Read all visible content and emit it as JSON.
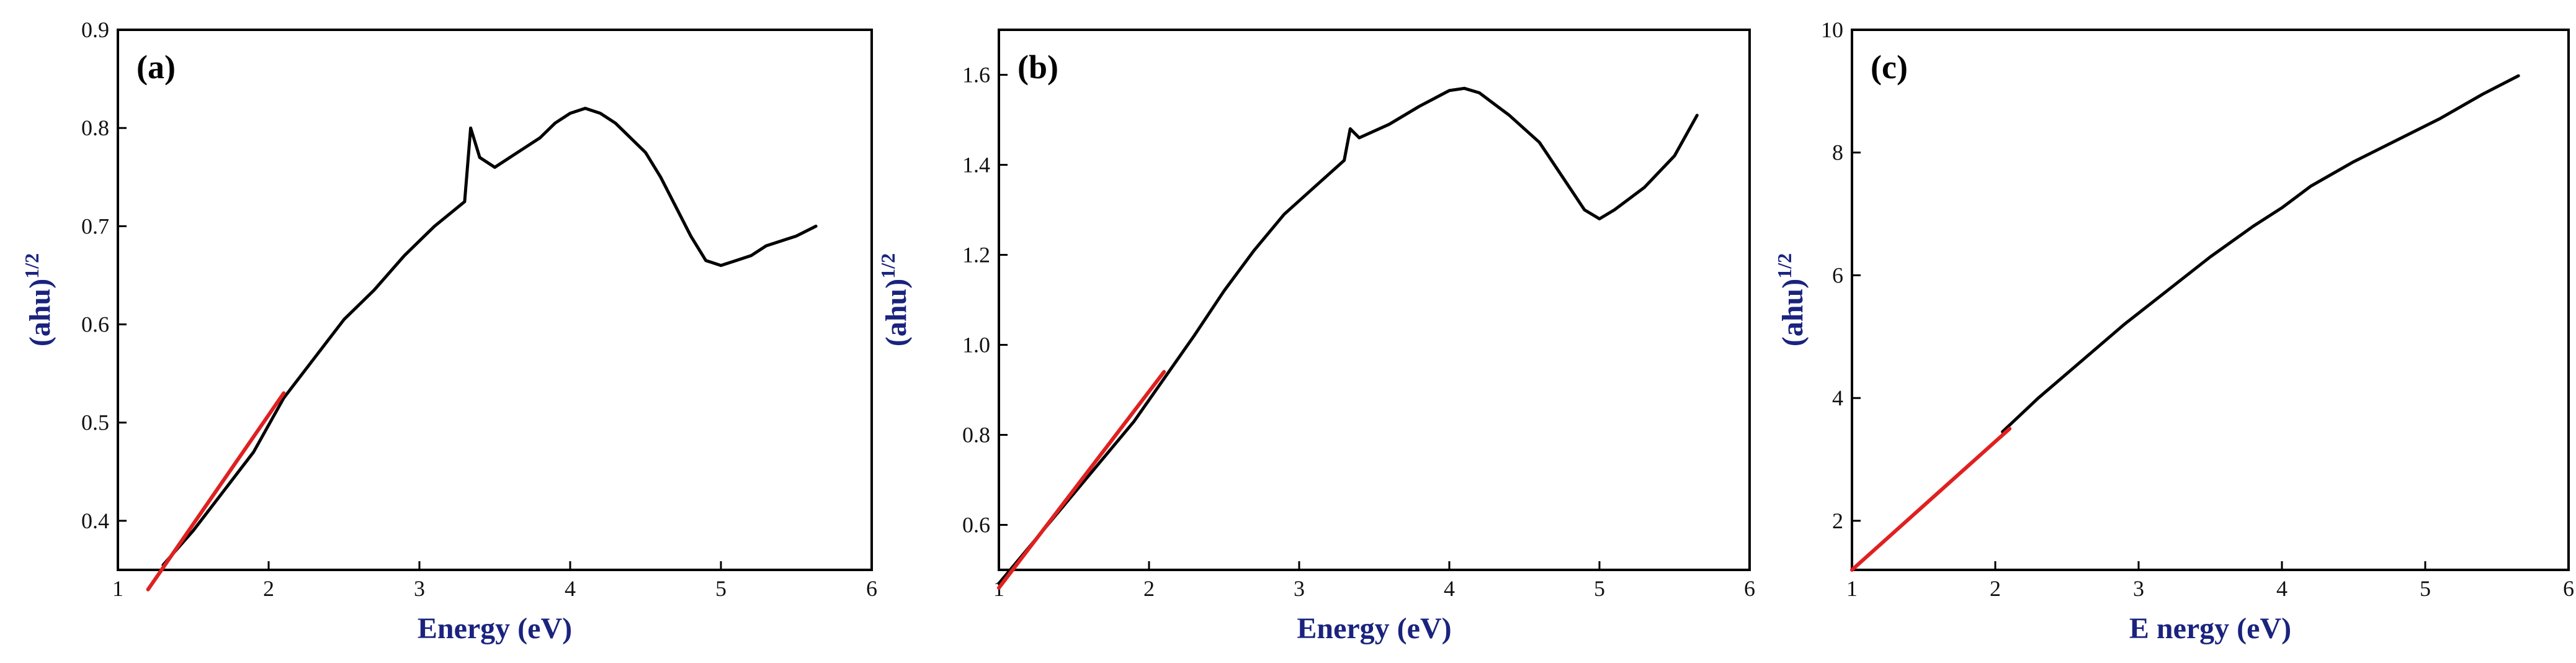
{
  "colors": {
    "curve": "#000000",
    "fit": "#e02020",
    "axis_title": "#1a237e"
  },
  "chart_data": [
    {
      "type": "line",
      "panel_label": "(a)",
      "xlabel": "Energy (eV)",
      "ylabel_base": "(ahu)",
      "ylabel_sup": "1/2",
      "xlim": [
        1,
        6
      ],
      "ylim": [
        0.35,
        0.9
      ],
      "xticks": [
        1,
        2,
        3,
        4,
        5,
        6
      ],
      "yticks": [
        0.4,
        0.5,
        0.6,
        0.7,
        0.8,
        0.9
      ],
      "ytick_labels": [
        "0.4",
        "0.5",
        "0.6",
        "0.7",
        "0.8",
        "0.9"
      ],
      "series": [
        {
          "role": "data",
          "x": [
            1.3,
            1.5,
            1.7,
            1.9,
            2.1,
            2.3,
            2.5,
            2.7,
            2.9,
            3.1,
            3.3,
            3.34,
            3.36,
            3.4,
            3.5,
            3.6,
            3.7,
            3.8,
            3.9,
            4.0,
            4.1,
            4.2,
            4.3,
            4.4,
            4.5,
            4.6,
            4.7,
            4.8,
            4.9,
            5.0,
            5.1,
            5.2,
            5.3,
            5.4,
            5.5,
            5.63
          ],
          "y": [
            0.355,
            0.39,
            0.43,
            0.47,
            0.525,
            0.565,
            0.605,
            0.635,
            0.67,
            0.7,
            0.725,
            0.8,
            0.79,
            0.77,
            0.76,
            0.77,
            0.78,
            0.79,
            0.805,
            0.815,
            0.82,
            0.815,
            0.805,
            0.79,
            0.775,
            0.75,
            0.72,
            0.69,
            0.665,
            0.66,
            0.665,
            0.67,
            0.68,
            0.685,
            0.69,
            0.7
          ]
        },
        {
          "role": "fit",
          "x": [
            1.2,
            2.1
          ],
          "y": [
            0.33,
            0.53
          ]
        }
      ]
    },
    {
      "type": "line",
      "panel_label": "(b)",
      "xlabel": "Energy (eV)",
      "ylabel_base": "(ahu)",
      "ylabel_sup": "1/2",
      "xlim": [
        1,
        6
      ],
      "ylim": [
        0.5,
        1.7
      ],
      "xticks": [
        1,
        2,
        3,
        4,
        5,
        6
      ],
      "yticks": [
        0.6,
        0.8,
        1.0,
        1.2,
        1.4,
        1.6
      ],
      "ytick_labels": [
        "0.6",
        "0.8",
        "1.0",
        "1.2",
        "1.4",
        "1.6"
      ],
      "series": [
        {
          "role": "data",
          "x": [
            1.0,
            1.3,
            1.6,
            1.9,
            2.1,
            2.3,
            2.5,
            2.7,
            2.9,
            3.1,
            3.3,
            3.34,
            3.4,
            3.6,
            3.8,
            4.0,
            4.1,
            4.2,
            4.4,
            4.6,
            4.8,
            4.9,
            5.0,
            5.1,
            5.3,
            5.5,
            5.65
          ],
          "y": [
            0.47,
            0.59,
            0.71,
            0.83,
            0.925,
            1.02,
            1.12,
            1.21,
            1.29,
            1.35,
            1.41,
            1.48,
            1.46,
            1.49,
            1.53,
            1.565,
            1.57,
            1.56,
            1.51,
            1.45,
            1.35,
            1.3,
            1.28,
            1.3,
            1.35,
            1.42,
            1.51
          ]
        },
        {
          "role": "fit",
          "x": [
            1.0,
            2.1
          ],
          "y": [
            0.46,
            0.94
          ]
        }
      ]
    },
    {
      "type": "line",
      "panel_label": "(c)",
      "xlabel": "E nergy (eV)",
      "ylabel_base": "(ahu)",
      "ylabel_sup": "1/2",
      "xlim": [
        1,
        6
      ],
      "ylim": [
        1.2,
        10
      ],
      "xticks": [
        1,
        2,
        3,
        4,
        5,
        6
      ],
      "yticks": [
        2,
        4,
        6,
        8,
        10
      ],
      "ytick_labels": [
        "2",
        "4",
        "6",
        "8",
        "10"
      ],
      "series": [
        {
          "role": "data",
          "x": [
            2.05,
            2.3,
            2.6,
            2.9,
            3.2,
            3.5,
            3.8,
            4.0,
            4.2,
            4.5,
            4.8,
            5.1,
            5.4,
            5.65
          ],
          "y": [
            3.45,
            4.0,
            4.6,
            5.2,
            5.75,
            6.3,
            6.8,
            7.1,
            7.45,
            7.85,
            8.2,
            8.55,
            8.95,
            9.25
          ]
        },
        {
          "role": "fit",
          "x": [
            1.0,
            2.1
          ],
          "y": [
            1.2,
            3.5
          ]
        }
      ]
    }
  ]
}
